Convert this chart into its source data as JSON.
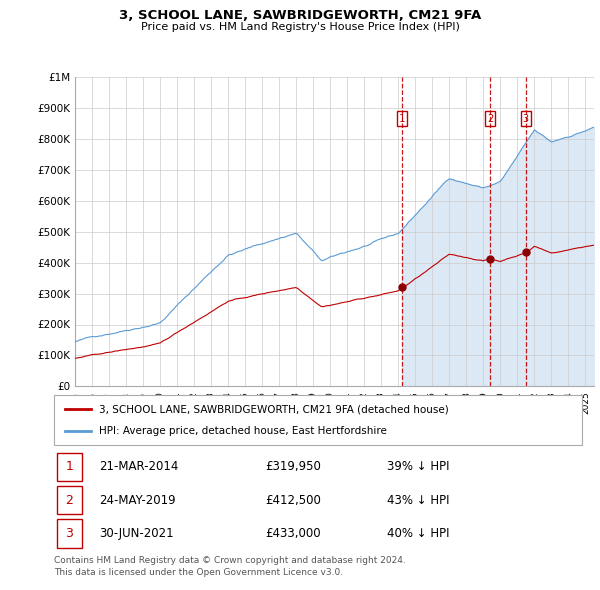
{
  "title": "3, SCHOOL LANE, SAWBRIDGEWORTH, CM21 9FA",
  "subtitle": "Price paid vs. HM Land Registry's House Price Index (HPI)",
  "ylim": [
    0,
    1000000
  ],
  "yticks": [
    0,
    100000,
    200000,
    300000,
    400000,
    500000,
    600000,
    700000,
    800000,
    900000,
    1000000
  ],
  "ytick_labels": [
    "£0",
    "£100K",
    "£200K",
    "£300K",
    "£400K",
    "£500K",
    "£600K",
    "£700K",
    "£800K",
    "£900K",
    "£1M"
  ],
  "hpi_color": "#5b9bd5",
  "price_color": "#c00000",
  "vline_color": "#c00000",
  "fill_color": "#dce9f5",
  "bg_color": "#ffffff",
  "grid_color": "#cccccc",
  "xlim_start": 1995.0,
  "xlim_end": 2025.5,
  "transactions": [
    {
      "label": "1",
      "date": "21-MAR-2014",
      "price": 319950,
      "pct": "39%",
      "x_year": 2014.22
    },
    {
      "label": "2",
      "date": "24-MAY-2019",
      "price": 412500,
      "pct": "43%",
      "x_year": 2019.4
    },
    {
      "label": "3",
      "date": "30-JUN-2021",
      "price": 433000,
      "pct": "40%",
      "x_year": 2021.5
    }
  ],
  "legend_entry1": "3, SCHOOL LANE, SAWBRIDGEWORTH, CM21 9FA (detached house)",
  "legend_entry2": "HPI: Average price, detached house, East Hertfordshire",
  "footer1": "Contains HM Land Registry data © Crown copyright and database right 2024.",
  "footer2": "This data is licensed under the Open Government Licence v3.0."
}
